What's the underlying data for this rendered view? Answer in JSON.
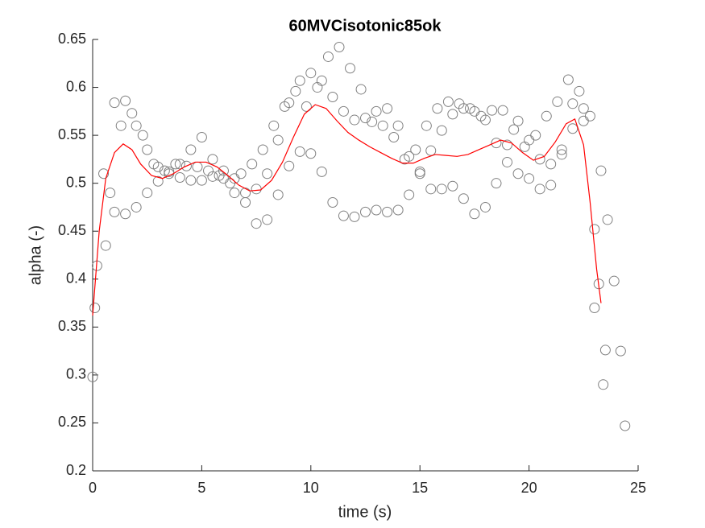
{
  "chart_data": {
    "type": "scatter",
    "title": "60MVCisotonic85ok",
    "xlabel": "time (s)",
    "ylabel": "alpha (-)",
    "xlim": [
      0,
      25
    ],
    "ylim": [
      0.2,
      0.65
    ],
    "xticks": [
      0,
      5,
      10,
      15,
      20,
      25
    ],
    "yticks": [
      0.2,
      0.25,
      0.3,
      0.35,
      0.4,
      0.45,
      0.5,
      0.55,
      0.6,
      0.65
    ],
    "series": [
      {
        "type": "scatter",
        "color": "#808080",
        "x": [
          0,
          0.5,
          1.0,
          1.5,
          2.0,
          2.5,
          3.0,
          3.5,
          4.0,
          4.5,
          5.0,
          5.5,
          6.0,
          6.5,
          7.0,
          7.5,
          8.0,
          8.5,
          9.0,
          9.5,
          10.0,
          10.5,
          11.0,
          11.5,
          12.0,
          12.5,
          13.0,
          13.5,
          14.0,
          14.5,
          15.0,
          15.5,
          16.0,
          16.5,
          17.0,
          17.5,
          18.0,
          18.5,
          19.0,
          19.5,
          20.0,
          20.5,
          21.0,
          21.5,
          22.0,
          22.5,
          23.0,
          23.5,
          0.1,
          0.6,
          1.0,
          1.5,
          2.0,
          2.5,
          3.0,
          3.5,
          4.0,
          4.5,
          5.0,
          5.5,
          6.0,
          6.5,
          7.0,
          7.5,
          8.0,
          8.5,
          9.0,
          9.5,
          10.0,
          10.5,
          11.0,
          11.5,
          12.0,
          12.5,
          13.0,
          13.5,
          14.0,
          14.5,
          15.0,
          15.5,
          16.0,
          16.5,
          17.0,
          17.5,
          18.0,
          18.5,
          19.0,
          19.5,
          20.0,
          20.5,
          21.0,
          21.5,
          22.0,
          22.5,
          23.0,
          24.2,
          0.2,
          0.8,
          1.3,
          1.8,
          2.3,
          2.8,
          3.3,
          3.8,
          4.3,
          4.8,
          5.3,
          5.8,
          6.3,
          6.8,
          7.3,
          7.8,
          8.3,
          8.8,
          9.3,
          9.8,
          10.3,
          10.8,
          11.3,
          11.8,
          12.3,
          12.8,
          13.3,
          13.8,
          14.3,
          14.8,
          15.3,
          15.8,
          16.3,
          16.8,
          17.3,
          17.8,
          18.3,
          18.8,
          19.3,
          19.8,
          20.3,
          20.8,
          21.3,
          21.8,
          22.3,
          22.8,
          23.3,
          23.6,
          23.9,
          24.4,
          23.4,
          23.2
        ],
        "values": [
          0.298,
          0.51,
          0.584,
          0.586,
          0.56,
          0.535,
          0.517,
          0.51,
          0.506,
          0.503,
          0.503,
          0.507,
          0.513,
          0.505,
          0.48,
          0.458,
          0.462,
          0.488,
          0.518,
          0.533,
          0.531,
          0.512,
          0.48,
          0.466,
          0.465,
          0.47,
          0.472,
          0.47,
          0.472,
          0.488,
          0.512,
          0.534,
          0.555,
          0.572,
          0.578,
          0.575,
          0.566,
          0.542,
          0.522,
          0.51,
          0.505,
          0.494,
          0.498,
          0.535,
          0.583,
          0.565,
          0.452,
          0.326,
          0.37,
          0.435,
          0.47,
          0.468,
          0.475,
          0.49,
          0.502,
          0.512,
          0.52,
          0.535,
          0.548,
          0.525,
          0.505,
          0.49,
          0.49,
          0.494,
          0.51,
          0.545,
          0.584,
          0.607,
          0.615,
          0.607,
          0.59,
          0.575,
          0.566,
          0.568,
          0.575,
          0.578,
          0.56,
          0.528,
          0.51,
          0.494,
          0.494,
          0.497,
          0.484,
          0.468,
          0.475,
          0.5,
          0.54,
          0.565,
          0.545,
          0.525,
          0.52,
          0.53,
          0.557,
          0.578,
          0.37,
          0.325,
          0.414,
          0.49,
          0.56,
          0.573,
          0.55,
          0.52,
          0.513,
          0.52,
          0.518,
          0.517,
          0.513,
          0.508,
          0.5,
          0.51,
          0.52,
          0.535,
          0.56,
          0.58,
          0.596,
          0.58,
          0.6,
          0.632,
          0.642,
          0.62,
          0.598,
          0.564,
          0.56,
          0.548,
          0.525,
          0.535,
          0.56,
          0.578,
          0.585,
          0.583,
          0.578,
          0.57,
          0.576,
          0.576,
          0.556,
          0.538,
          0.55,
          0.57,
          0.585,
          0.608,
          0.596,
          0.57,
          0.513,
          0.462,
          0.398,
          0.247,
          0.29,
          0.395
        ]
      },
      {
        "type": "line",
        "color": "#ff0000",
        "x": [
          0,
          0.3,
          0.6,
          1.0,
          1.4,
          1.8,
          2.2,
          2.7,
          3.2,
          3.7,
          4.2,
          4.7,
          5.2,
          5.7,
          6.2,
          6.7,
          7.2,
          7.7,
          8.2,
          8.7,
          9.2,
          9.7,
          10.2,
          10.7,
          11.2,
          11.7,
          12.2,
          12.7,
          13.2,
          13.7,
          14.2,
          14.7,
          15.2,
          15.7,
          16.2,
          16.7,
          17.2,
          17.7,
          18.2,
          18.7,
          19.2,
          19.7,
          20.2,
          20.7,
          21.2,
          21.7,
          22.1,
          22.5,
          22.8,
          23.1,
          23.3
        ],
        "values": [
          0.362,
          0.45,
          0.505,
          0.532,
          0.541,
          0.535,
          0.52,
          0.508,
          0.505,
          0.51,
          0.517,
          0.522,
          0.522,
          0.517,
          0.508,
          0.498,
          0.492,
          0.493,
          0.503,
          0.522,
          0.548,
          0.572,
          0.582,
          0.578,
          0.565,
          0.553,
          0.545,
          0.538,
          0.532,
          0.526,
          0.521,
          0.521,
          0.526,
          0.53,
          0.529,
          0.528,
          0.53,
          0.535,
          0.54,
          0.545,
          0.542,
          0.532,
          0.524,
          0.528,
          0.543,
          0.562,
          0.567,
          0.54,
          0.48,
          0.41,
          0.375
        ]
      }
    ]
  }
}
